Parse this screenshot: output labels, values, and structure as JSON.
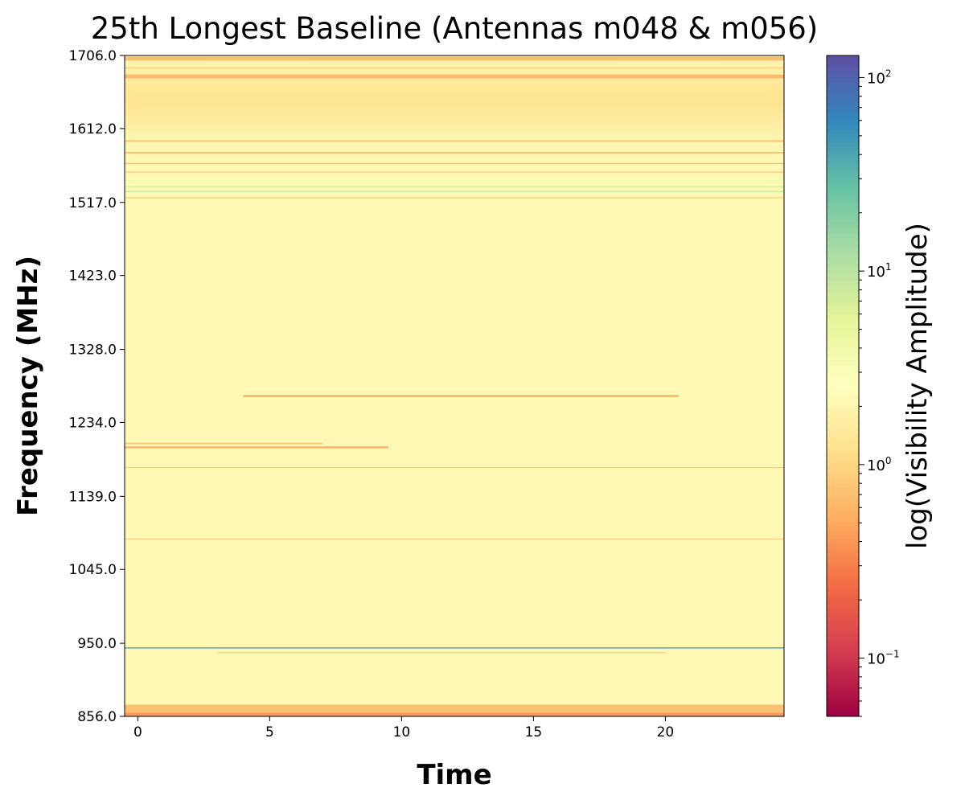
{
  "chart_data": {
    "type": "heatmap",
    "title": "25th Longest Baseline (Antennas m048 & m056)",
    "xlabel": "Time",
    "ylabel": "Frequency (MHz)",
    "colorbar_label": "log(Visibility Amplitude)",
    "colormap": "Spectral",
    "color_scale": "log",
    "xlim": [
      -0.5,
      24.5
    ],
    "ylim": [
      856.0,
      1706.0
    ],
    "x_ticks": [
      0,
      5,
      10,
      15,
      20
    ],
    "y_ticks": [
      856.0,
      950.0,
      1045.0,
      1139.0,
      1234.0,
      1328.0,
      1423.0,
      1517.0,
      1612.0,
      1706.0
    ],
    "y_tick_labels": [
      "856.0",
      "950.0",
      "1045.0",
      "1139.0",
      "1234.0",
      "1328.0",
      "1423.0",
      "1517.0",
      "1612.0",
      "1706.0"
    ],
    "x_tick_labels": [
      "0",
      "5",
      "10",
      "15",
      "20"
    ],
    "colorbar_range": [
      0.05,
      130
    ],
    "colorbar_ticks": [
      {
        "value": 0.1,
        "base": "10",
        "exp": "−1"
      },
      {
        "value": 1,
        "base": "10",
        "exp": "0"
      },
      {
        "value": 10,
        "base": "10",
        "exp": "1"
      },
      {
        "value": 100,
        "base": "10",
        "exp": "2"
      }
    ],
    "background_amplitude": 2.2,
    "frequency_features": [
      {
        "freq": 858.0,
        "amplitude": 0.35,
        "width": 6.0,
        "t_start": -0.5,
        "t_end": 24.5
      },
      {
        "freq": 866.0,
        "amplitude": 0.6,
        "width": 10.0,
        "t_start": -0.5,
        "t_end": 24.5
      },
      {
        "freq": 944.0,
        "amplitude": 60.0,
        "width": 1.2,
        "t_start": -0.5,
        "t_end": 24.5
      },
      {
        "freq": 938.0,
        "amplitude": 0.8,
        "width": 1.5,
        "t_start": 3.0,
        "t_end": 20.0
      },
      {
        "freq": 1084.0,
        "amplitude": 0.9,
        "width": 1.5,
        "t_start": -0.5,
        "t_end": 24.5
      },
      {
        "freq": 1176.0,
        "amplitude": 0.9,
        "width": 1.5,
        "t_start": -0.5,
        "t_end": 24.5
      },
      {
        "freq": 1202.0,
        "amplitude": 0.5,
        "width": 2.5,
        "t_start": -0.5,
        "t_end": 9.5
      },
      {
        "freq": 1207.0,
        "amplitude": 0.7,
        "width": 2.0,
        "t_start": -0.5,
        "t_end": 7.0
      },
      {
        "freq": 1268.0,
        "amplitude": 0.55,
        "width": 3.0,
        "t_start": 4.0,
        "t_end": 20.5
      },
      {
        "freq": 1523.0,
        "amplitude": 0.9,
        "width": 1.5,
        "t_start": -0.5,
        "t_end": 24.5
      },
      {
        "freq": 1531.0,
        "amplitude": 8.0,
        "width": 1.5,
        "t_start": -0.5,
        "t_end": 24.5
      },
      {
        "freq": 1537.0,
        "amplitude": 6.0,
        "width": 2.5,
        "t_start": -0.5,
        "t_end": 24.5
      },
      {
        "freq": 1545.0,
        "amplitude": 4.0,
        "width": 2.0,
        "t_start": -0.5,
        "t_end": 24.5
      },
      {
        "freq": 1556.0,
        "amplitude": 0.8,
        "width": 1.5,
        "t_start": -0.5,
        "t_end": 24.5
      },
      {
        "freq": 1567.0,
        "amplitude": 0.6,
        "width": 1.5,
        "t_start": -0.5,
        "t_end": 24.5
      },
      {
        "freq": 1581.0,
        "amplitude": 0.6,
        "width": 2.0,
        "t_start": -0.5,
        "t_end": 24.5
      },
      {
        "freq": 1596.0,
        "amplitude": 0.6,
        "width": 2.0,
        "t_start": -0.5,
        "t_end": 24.5
      },
      {
        "freq": 1679.0,
        "amplitude": 0.55,
        "width": 5.0,
        "t_start": -0.5,
        "t_end": 24.5
      },
      {
        "freq": 1690.0,
        "amplitude": 0.9,
        "width": 2.0,
        "t_start": -0.5,
        "t_end": 24.5
      },
      {
        "freq": 1702.0,
        "amplitude": 0.6,
        "width": 5.0,
        "t_start": -0.5,
        "t_end": 24.5
      },
      {
        "freq": 1650.0,
        "amplitude": 1.3,
        "width": 40.0,
        "t_start": -0.5,
        "t_end": 24.5
      }
    ]
  }
}
